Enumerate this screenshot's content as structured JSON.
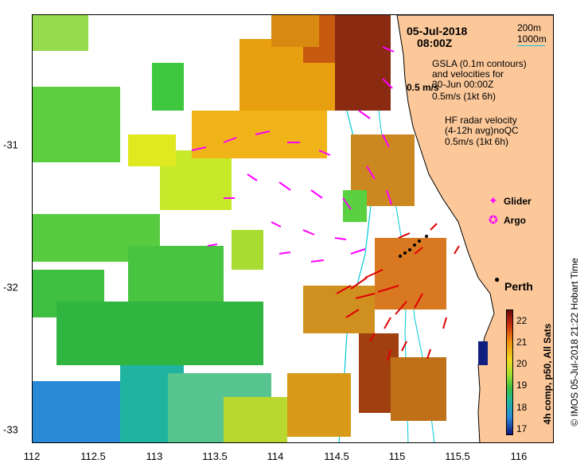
{
  "header": {
    "date": "05-Jul-2018",
    "time": "08:00Z"
  },
  "depth_legend": {
    "line1": "200m",
    "line2": "1000m",
    "color_200": "#000000",
    "color_1000": "#00c8d8"
  },
  "gsla": {
    "line1": "GSLA (0.1m contours)",
    "line2": "and velocities for",
    "line3": "30-Jun 00:00Z",
    "scale_label": "0.5 m/s",
    "ref_label": "0.5m/s (1kt 6h)"
  },
  "hf_radar": {
    "line1": "HF radar velocity",
    "line2": "(4-12h avg)noQC",
    "ref_label": "0.5m/s (1kt 6h)"
  },
  "markers": {
    "glider_label": "Glider",
    "argo_label": "Argo",
    "glider_color": "#ff00ff",
    "argo_color": "#ff00ff"
  },
  "city": {
    "label": "Perth"
  },
  "axes": {
    "x_ticks": [
      "112",
      "112.5",
      "113",
      "113.5",
      "114",
      "114.5",
      "115",
      "115.5",
      "116"
    ],
    "y_ticks": [
      "-31",
      "-32",
      "-33"
    ]
  },
  "colorbar": {
    "title": "4h comp, p50, All Sats",
    "ticks": [
      "22",
      "21",
      "20",
      "19",
      "18",
      "17"
    ],
    "range": [
      16.7,
      22.5
    ]
  },
  "credit": "© IMOS 05-Jul-2018 21:22 Hobart Time",
  "colors": {
    "land": "#fcc89a",
    "vector_gsla": "#ff00ff",
    "vector_hf": "#e00000"
  }
}
